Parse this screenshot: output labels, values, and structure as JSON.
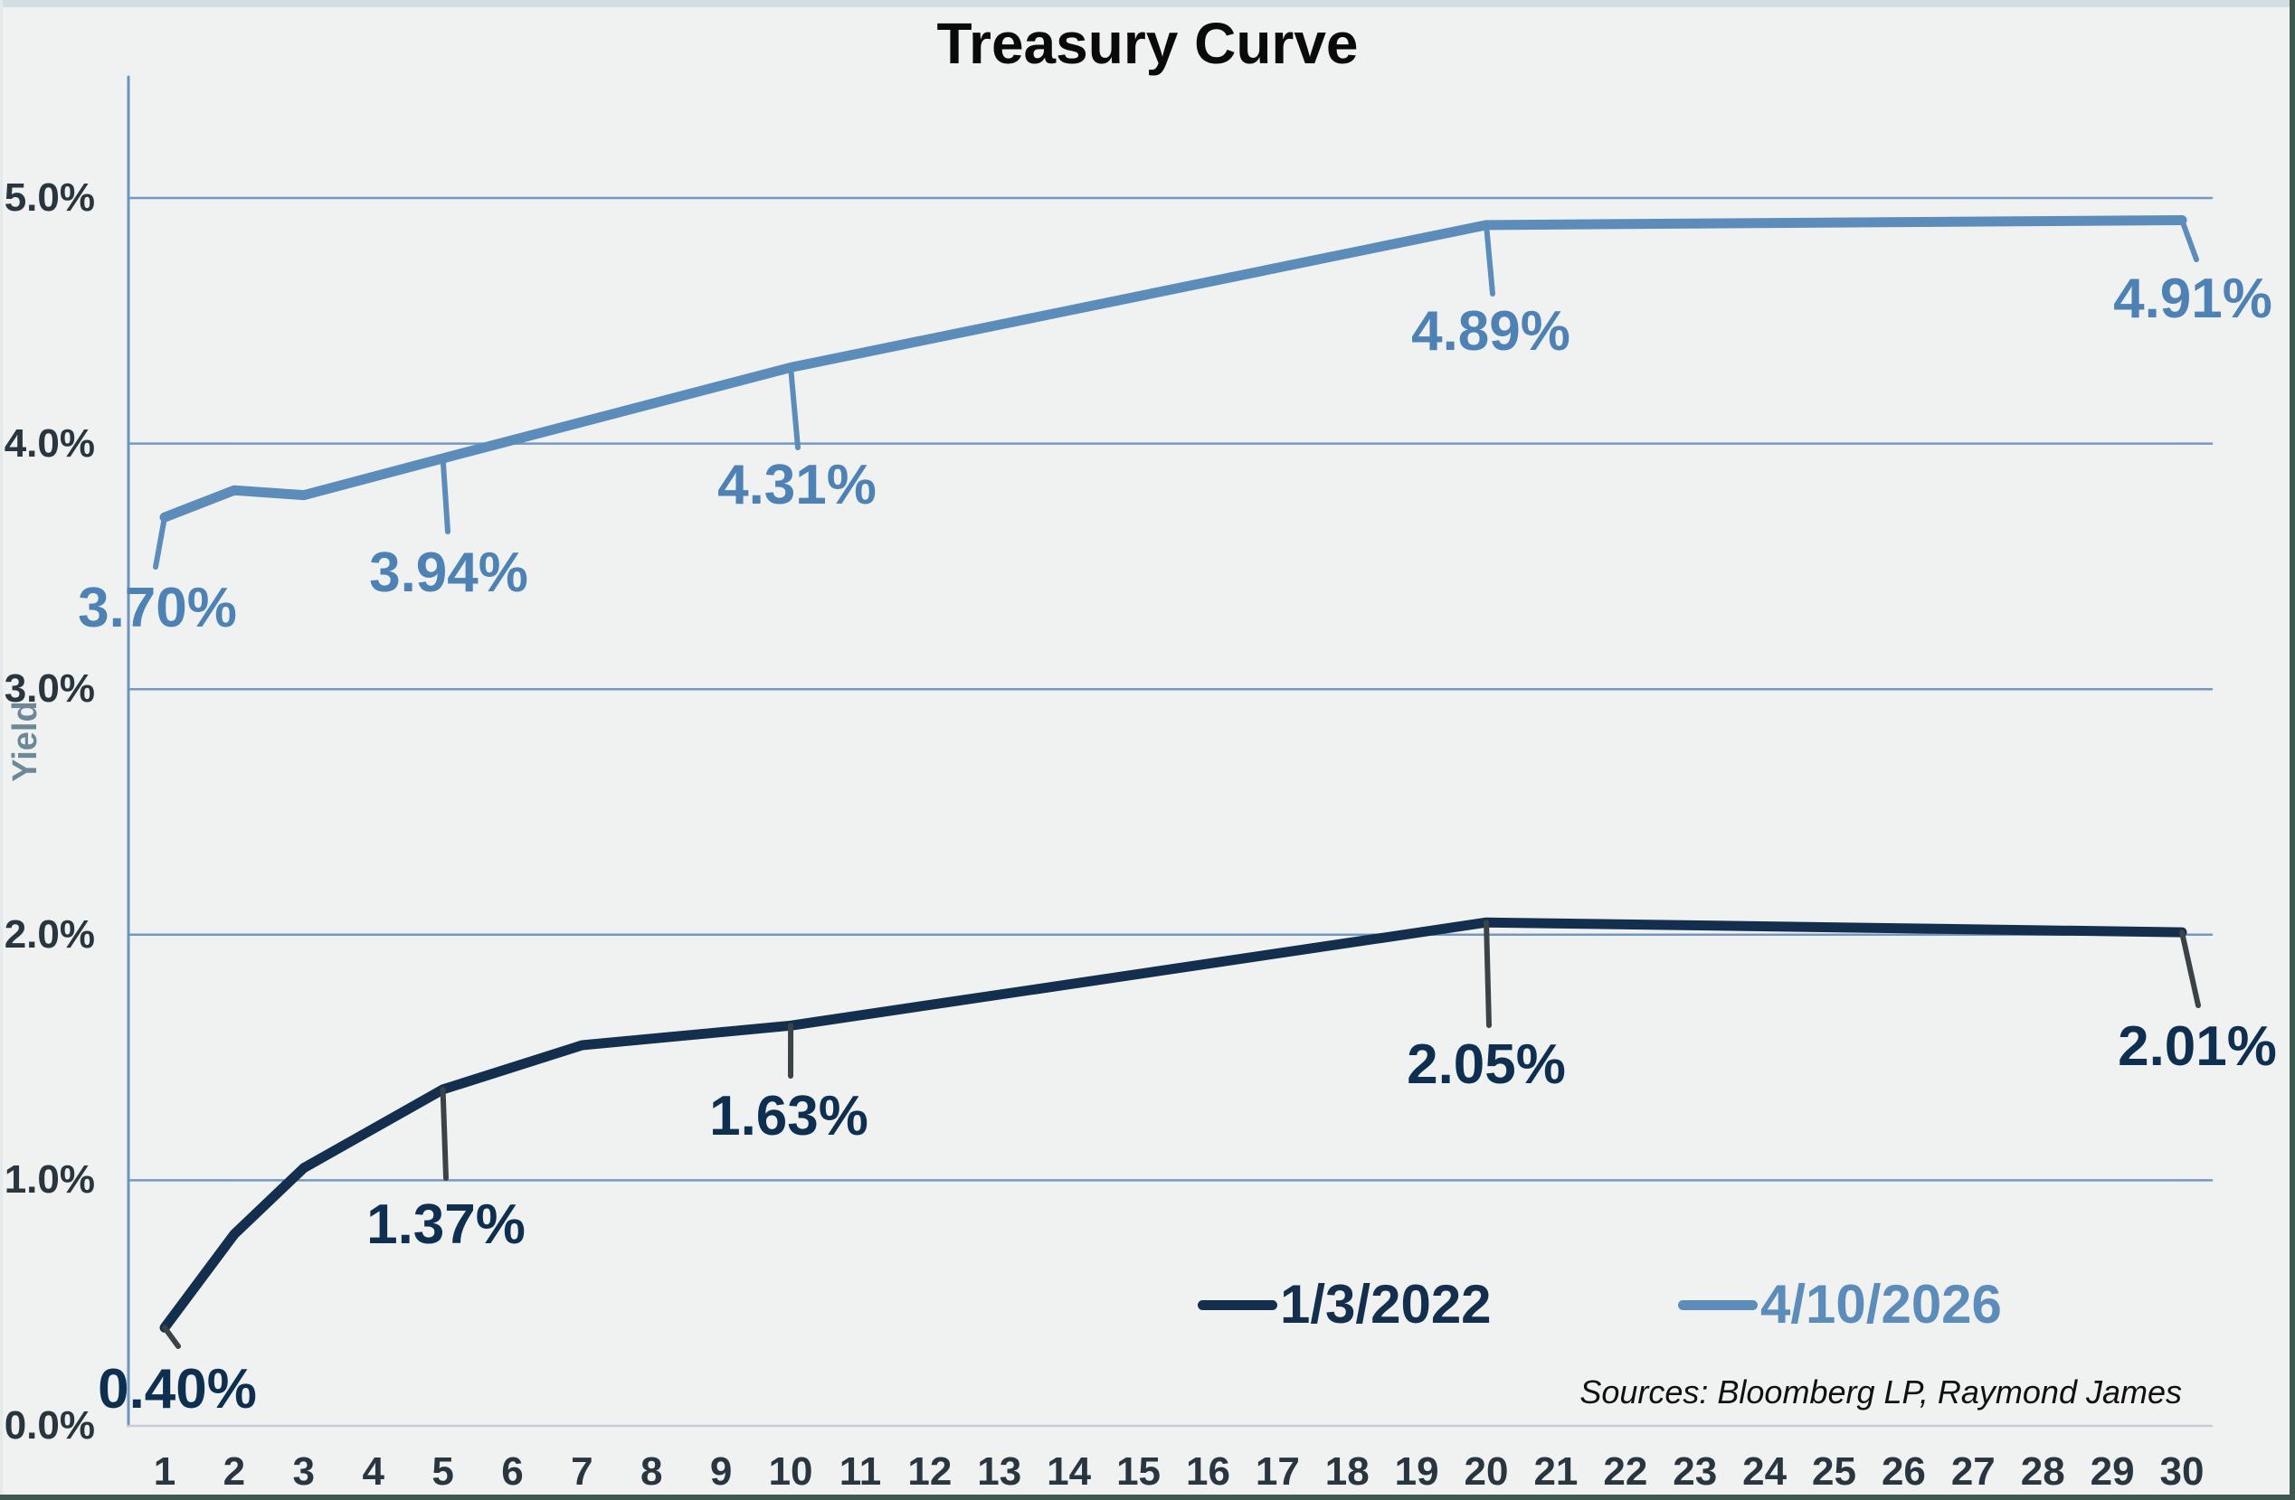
{
  "title": "Treasury Curve",
  "y_axis": {
    "label": "Yield",
    "ticks": [
      {
        "value": 5,
        "label": "5.0%"
      },
      {
        "value": 4,
        "label": "4.0%"
      },
      {
        "value": 3,
        "label": "3.0%"
      },
      {
        "value": 2,
        "label": "2.0%"
      },
      {
        "value": 1,
        "label": "1.0%"
      },
      {
        "value": 0,
        "label": "0.0%"
      }
    ]
  },
  "x_axis": {
    "ticks": [
      "1",
      "2",
      "3",
      "4",
      "5",
      "6",
      "7",
      "8",
      "9",
      "10",
      "11",
      "12",
      "13",
      "14",
      "15",
      "16",
      "17",
      "18",
      "19",
      "20",
      "21",
      "22",
      "23",
      "24",
      "25",
      "26",
      "27",
      "28",
      "29",
      "30"
    ]
  },
  "legend": {
    "items": [
      {
        "label": "1/3/2022",
        "color": "#132f4d"
      },
      {
        "label": "4/10/2026",
        "color": "#5b8cba"
      }
    ],
    "position": "bottom-right"
  },
  "sources": "Sources: Bloomberg LP, Raymond James",
  "colors": {
    "background": "#f0f1f1",
    "top_edge": "#d3dee3",
    "dark_edge": "#3e5a50",
    "gridline": "#7598c3",
    "axis_line": "#6d93c0",
    "zero_line": "#c6ced6",
    "title_text": "#0a0a0a",
    "tick_text": "#293640",
    "yield_text": "#6d8998",
    "series_dark": "#132f4d",
    "series_blue": "#5b8cba",
    "dark_leader": "#3c4347"
  },
  "chart_data": {
    "type": "line",
    "title": "Treasury Curve",
    "xlabel": "",
    "ylabel": "Yield",
    "ylim": [
      0,
      5.5
    ],
    "x_range": [
      1,
      30
    ],
    "grid": true,
    "legend_position": "bottom-right",
    "series": [
      {
        "name": "1/3/2022",
        "color": "#132f4d",
        "label_color": "#0f2f51",
        "leader_color": "#3c4347",
        "points": [
          {
            "x": 1,
            "y": 0.4
          },
          {
            "x": 2,
            "y": 0.78
          },
          {
            "x": 3,
            "y": 1.05
          },
          {
            "x": 5,
            "y": 1.37
          },
          {
            "x": 7,
            "y": 1.55
          },
          {
            "x": 10,
            "y": 1.63
          },
          {
            "x": 20,
            "y": 2.05
          },
          {
            "x": 30,
            "y": 2.01
          }
        ],
        "data_labels": [
          {
            "x": 1,
            "text": "0.40%"
          },
          {
            "x": 5,
            "text": "1.37%"
          },
          {
            "x": 10,
            "text": "1.63%"
          },
          {
            "x": 20,
            "text": "2.05%"
          },
          {
            "x": 30,
            "text": "2.01%"
          }
        ]
      },
      {
        "name": "4/10/2026",
        "color": "#5b8cba",
        "label_color": "#4e82b4",
        "leader_color": "#5b8cba",
        "points": [
          {
            "x": 1,
            "y": 3.7
          },
          {
            "x": 2,
            "y": 3.81
          },
          {
            "x": 3,
            "y": 3.79
          },
          {
            "x": 5,
            "y": 3.94
          },
          {
            "x": 10,
            "y": 4.31
          },
          {
            "x": 20,
            "y": 4.89
          },
          {
            "x": 30,
            "y": 4.91
          }
        ],
        "data_labels": [
          {
            "x": 1,
            "text": "3.70%"
          },
          {
            "x": 5,
            "text": "3.94%"
          },
          {
            "x": 10,
            "text": "4.31%"
          },
          {
            "x": 20,
            "text": "4.89%"
          },
          {
            "x": 30,
            "text": "4.91%"
          }
        ]
      }
    ]
  }
}
